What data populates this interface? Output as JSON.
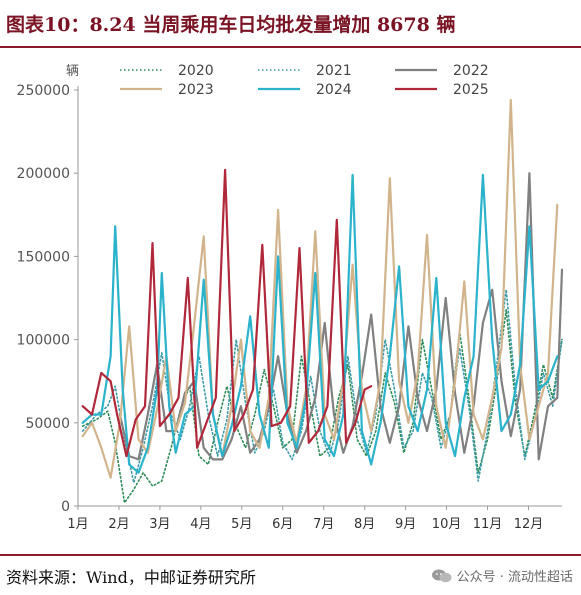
{
  "header": {
    "title": "图表10：8.24 当周乘用车日均批发量增加 8678 辆"
  },
  "footer": {
    "source": "资料来源：Wind，中邮证券研究所",
    "watermark": "公众号 · 流动性超话",
    "watermark_icon": "wechat-icon"
  },
  "chart_data": {
    "type": "line",
    "title": "",
    "ylabel": "辆",
    "xlabel": "",
    "ylim": [
      0,
      250000
    ],
    "yticks": [
      0,
      50000,
      100000,
      150000,
      200000,
      250000
    ],
    "yticklabels": [
      "0",
      "50000",
      "100000",
      "150000",
      "200000",
      "250000"
    ],
    "xlim": [
      0,
      52
    ],
    "xticks": [
      0,
      4.4,
      8.8,
      13.2,
      17.6,
      22,
      26.4,
      30.8,
      35.2,
      39.6,
      44,
      48.4
    ],
    "xticklabels": [
      "1月",
      "2月",
      "3月",
      "4月",
      "5月",
      "6月",
      "7月",
      "8月",
      "9月",
      "10月",
      "11月",
      "12月"
    ],
    "grid": false,
    "legend": "top",
    "series": [
      {
        "name": "2020",
        "color": "#2e8b57",
        "style": "dotted",
        "values": [
          [
            0.5,
            48000
          ],
          [
            2,
            52000
          ],
          [
            3.2,
            57000
          ],
          [
            4,
            38000
          ],
          [
            5,
            2000
          ],
          [
            6,
            10000
          ],
          [
            7,
            20000
          ],
          [
            8,
            12000
          ],
          [
            9,
            15000
          ],
          [
            10,
            35000
          ],
          [
            11,
            58000
          ],
          [
            12,
            72000
          ],
          [
            13,
            30000
          ],
          [
            14,
            25000
          ],
          [
            15,
            50000
          ],
          [
            16,
            72000
          ],
          [
            17,
            48000
          ],
          [
            18,
            35000
          ],
          [
            19,
            55000
          ],
          [
            20,
            82000
          ],
          [
            21,
            60000
          ],
          [
            22,
            35000
          ],
          [
            23,
            40000
          ],
          [
            24,
            90000
          ],
          [
            25,
            60000
          ],
          [
            26,
            30000
          ],
          [
            27,
            35000
          ],
          [
            28,
            65000
          ],
          [
            29,
            85000
          ],
          [
            30,
            40000
          ],
          [
            31,
            30000
          ],
          [
            32,
            45000
          ],
          [
            33,
            80000
          ],
          [
            34,
            62000
          ],
          [
            35,
            32000
          ],
          [
            36,
            50000
          ],
          [
            37,
            100000
          ],
          [
            38,
            70000
          ],
          [
            39,
            40000
          ],
          [
            40,
            55000
          ],
          [
            41,
            105000
          ],
          [
            42,
            65000
          ],
          [
            43,
            20000
          ],
          [
            44,
            40000
          ],
          [
            45,
            75000
          ],
          [
            46,
            118000
          ],
          [
            47,
            62000
          ],
          [
            48,
            30000
          ],
          [
            49,
            55000
          ],
          [
            50,
            85000
          ],
          [
            51,
            65000
          ],
          [
            52,
            100000
          ]
        ]
      },
      {
        "name": "2021",
        "color": "#3a9aa8",
        "style": "dotted",
        "values": [
          [
            0.5,
            45000
          ],
          [
            2,
            55000
          ],
          [
            3.2,
            60000
          ],
          [
            4,
            72000
          ],
          [
            5,
            40000
          ],
          [
            6,
            14000
          ],
          [
            7,
            35000
          ],
          [
            8,
            60000
          ],
          [
            9,
            92000
          ],
          [
            10,
            55000
          ],
          [
            11,
            40000
          ],
          [
            12,
            60000
          ],
          [
            13,
            90000
          ],
          [
            14,
            55000
          ],
          [
            15,
            30000
          ],
          [
            16,
            52000
          ],
          [
            17,
            100000
          ],
          [
            18,
            62000
          ],
          [
            19,
            32000
          ],
          [
            20,
            45000
          ],
          [
            21,
            70000
          ],
          [
            22,
            38000
          ],
          [
            23,
            28000
          ],
          [
            24,
            45000
          ],
          [
            25,
            78000
          ],
          [
            26,
            45000
          ],
          [
            27,
            30000
          ],
          [
            28,
            50000
          ],
          [
            29,
            90000
          ],
          [
            30,
            52000
          ],
          [
            31,
            32000
          ],
          [
            32,
            55000
          ],
          [
            33,
            100000
          ],
          [
            34,
            70000
          ],
          [
            35,
            35000
          ],
          [
            36,
            45000
          ],
          [
            37,
            80000
          ],
          [
            38,
            65000
          ],
          [
            39,
            35000
          ],
          [
            40,
            55000
          ],
          [
            41,
            95000
          ],
          [
            42,
            60000
          ],
          [
            43,
            15000
          ],
          [
            44,
            45000
          ],
          [
            45,
            85000
          ],
          [
            46,
            130000
          ],
          [
            47,
            70000
          ],
          [
            48,
            28000
          ],
          [
            49,
            50000
          ],
          [
            50,
            80000
          ],
          [
            51,
            60000
          ],
          [
            52,
            100000
          ]
        ]
      },
      {
        "name": "2022",
        "color": "#808080",
        "style": "solid",
        "values": [
          [
            4.5,
            55000
          ],
          [
            5.5,
            30000
          ],
          [
            6.5,
            28000
          ],
          [
            7.5,
            55000
          ],
          [
            8.5,
            85000
          ],
          [
            9.5,
            45000
          ],
          [
            10.5,
            45000
          ],
          [
            11.5,
            68000
          ],
          [
            12.5,
            75000
          ],
          [
            13.5,
            35000
          ],
          [
            14.5,
            28000
          ],
          [
            15.5,
            28000
          ],
          [
            16.5,
            40000
          ],
          [
            17.5,
            60000
          ],
          [
            18.5,
            32000
          ],
          [
            19.5,
            40000
          ],
          [
            20.5,
            60000
          ],
          [
            21.5,
            90000
          ],
          [
            22.5,
            55000
          ],
          [
            23.5,
            32000
          ],
          [
            24.5,
            45000
          ],
          [
            25.5,
            65000
          ],
          [
            26.5,
            110000
          ],
          [
            27.5,
            55000
          ],
          [
            28.5,
            32000
          ],
          [
            29.5,
            48000
          ],
          [
            30.5,
            78000
          ],
          [
            31.5,
            115000
          ],
          [
            32.5,
            60000
          ],
          [
            33.5,
            38000
          ],
          [
            34.5,
            60000
          ],
          [
            35.5,
            108000
          ],
          [
            36.5,
            65000
          ],
          [
            37.5,
            45000
          ],
          [
            38.5,
            70000
          ],
          [
            39.5,
            125000
          ],
          [
            40.5,
            68000
          ],
          [
            41.5,
            32000
          ],
          [
            42.5,
            60000
          ],
          [
            43.5,
            110000
          ],
          [
            44.5,
            130000
          ],
          [
            45.5,
            75000
          ],
          [
            46.5,
            42000
          ],
          [
            47.5,
            70000
          ],
          [
            48.5,
            200000
          ],
          [
            49.5,
            28000
          ],
          [
            50.5,
            60000
          ],
          [
            51.5,
            65000
          ],
          [
            52,
            142000
          ]
        ]
      },
      {
        "name": "2023",
        "color": "#d2b48c",
        "style": "solid",
        "values": [
          [
            0.5,
            42000
          ],
          [
            1.5,
            50000
          ],
          [
            2.5,
            35000
          ],
          [
            3.5,
            17000
          ],
          [
            4.5,
            50000
          ],
          [
            5.5,
            108000
          ],
          [
            6.5,
            40000
          ],
          [
            7.5,
            32000
          ],
          [
            8.5,
            58000
          ],
          [
            9.5,
            90000
          ],
          [
            10.5,
            45000
          ],
          [
            11.5,
            62000
          ],
          [
            12.5,
            110000
          ],
          [
            13.5,
            162000
          ],
          [
            14.5,
            55000
          ],
          [
            15.5,
            30000
          ],
          [
            16.5,
            60000
          ],
          [
            17.5,
            100000
          ],
          [
            18.5,
            45000
          ],
          [
            19.5,
            35000
          ],
          [
            20.5,
            65000
          ],
          [
            21.5,
            178000
          ],
          [
            22.5,
            60000
          ],
          [
            23.5,
            38000
          ],
          [
            24.5,
            70000
          ],
          [
            25.5,
            165000
          ],
          [
            26.5,
            55000
          ],
          [
            27.5,
            40000
          ],
          [
            28.5,
            75000
          ],
          [
            29.5,
            145000
          ],
          [
            30.5,
            70000
          ],
          [
            31.5,
            45000
          ],
          [
            32.5,
            75000
          ],
          [
            33.5,
            197000
          ],
          [
            34.5,
            75000
          ],
          [
            35.5,
            50000
          ],
          [
            36.5,
            80000
          ],
          [
            37.5,
            163000
          ],
          [
            38.5,
            60000
          ],
          [
            39.5,
            35000
          ],
          [
            40.5,
            75000
          ],
          [
            41.5,
            135000
          ],
          [
            42.5,
            55000
          ],
          [
            43.5,
            40000
          ],
          [
            44.5,
            65000
          ],
          [
            45.5,
            95000
          ],
          [
            46.5,
            244000
          ],
          [
            47.5,
            85000
          ],
          [
            48.5,
            40000
          ],
          [
            49.5,
            60000
          ],
          [
            50.5,
            80000
          ],
          [
            51.5,
            181000
          ]
        ]
      },
      {
        "name": "2024",
        "color": "#2bb3cc",
        "style": "solid",
        "values": [
          [
            0.5,
            50000
          ],
          [
            1.5,
            55000
          ],
          [
            2.5,
            55000
          ],
          [
            3.5,
            90000
          ],
          [
            4,
            168000
          ],
          [
            4.8,
            70000
          ],
          [
            5.5,
            25000
          ],
          [
            6.5,
            20000
          ],
          [
            7.5,
            35000
          ],
          [
            8.5,
            70000
          ],
          [
            9,
            140000
          ],
          [
            9.8,
            60000
          ],
          [
            10.5,
            32000
          ],
          [
            11.5,
            55000
          ],
          [
            12.5,
            60000
          ],
          [
            13.5,
            136000
          ],
          [
            14.5,
            55000
          ],
          [
            15.5,
            30000
          ],
          [
            16.5,
            48000
          ],
          [
            17.5,
            72000
          ],
          [
            18.5,
            114000
          ],
          [
            19.5,
            55000
          ],
          [
            20.5,
            35000
          ],
          [
            21.5,
            150000
          ],
          [
            22.5,
            50000
          ],
          [
            23.5,
            35000
          ],
          [
            24.5,
            65000
          ],
          [
            25.5,
            140000
          ],
          [
            26.5,
            40000
          ],
          [
            27.5,
            30000
          ],
          [
            28.5,
            55000
          ],
          [
            29.5,
            199000
          ],
          [
            30.5,
            45000
          ],
          [
            31.5,
            25000
          ],
          [
            32.5,
            50000
          ],
          [
            33.5,
            90000
          ],
          [
            34.5,
            144000
          ],
          [
            35.5,
            60000
          ],
          [
            36.5,
            45000
          ],
          [
            37.5,
            70000
          ],
          [
            38.5,
            137000
          ],
          [
            39.5,
            50000
          ],
          [
            40.5,
            30000
          ],
          [
            41.5,
            65000
          ],
          [
            42.5,
            90000
          ],
          [
            43.5,
            199000
          ],
          [
            44.5,
            100000
          ],
          [
            45.5,
            45000
          ],
          [
            46.5,
            55000
          ],
          [
            47.5,
            85000
          ],
          [
            48.5,
            168000
          ],
          [
            49.5,
            70000
          ],
          [
            50.5,
            75000
          ],
          [
            51.5,
            90000
          ]
        ]
      },
      {
        "name": "2025",
        "color": "#b0283a",
        "style": "solid",
        "values": [
          [
            0.5,
            60000
          ],
          [
            1.5,
            55000
          ],
          [
            2.5,
            80000
          ],
          [
            3.5,
            75000
          ],
          [
            4.2,
            55000
          ],
          [
            5.2,
            30000
          ],
          [
            6.2,
            52000
          ],
          [
            7.2,
            60000
          ],
          [
            8,
            158000
          ],
          [
            8.8,
            48000
          ],
          [
            9.8,
            55000
          ],
          [
            10.8,
            65000
          ],
          [
            11.8,
            137000
          ],
          [
            12.8,
            35000
          ],
          [
            13.8,
            50000
          ],
          [
            14.8,
            65000
          ],
          [
            15.8,
            202000
          ],
          [
            16.8,
            45000
          ],
          [
            17.8,
            55000
          ],
          [
            18.8,
            70000
          ],
          [
            19.8,
            157000
          ],
          [
            20.8,
            48000
          ],
          [
            21.8,
            50000
          ],
          [
            22.8,
            60000
          ],
          [
            23.8,
            155000
          ],
          [
            24.8,
            38000
          ],
          [
            25.8,
            45000
          ],
          [
            26.8,
            60000
          ],
          [
            27.8,
            172000
          ],
          [
            28.8,
            38000
          ],
          [
            29.8,
            50000
          ],
          [
            30.8,
            70000
          ],
          [
            31.5,
            72000
          ]
        ]
      }
    ]
  }
}
